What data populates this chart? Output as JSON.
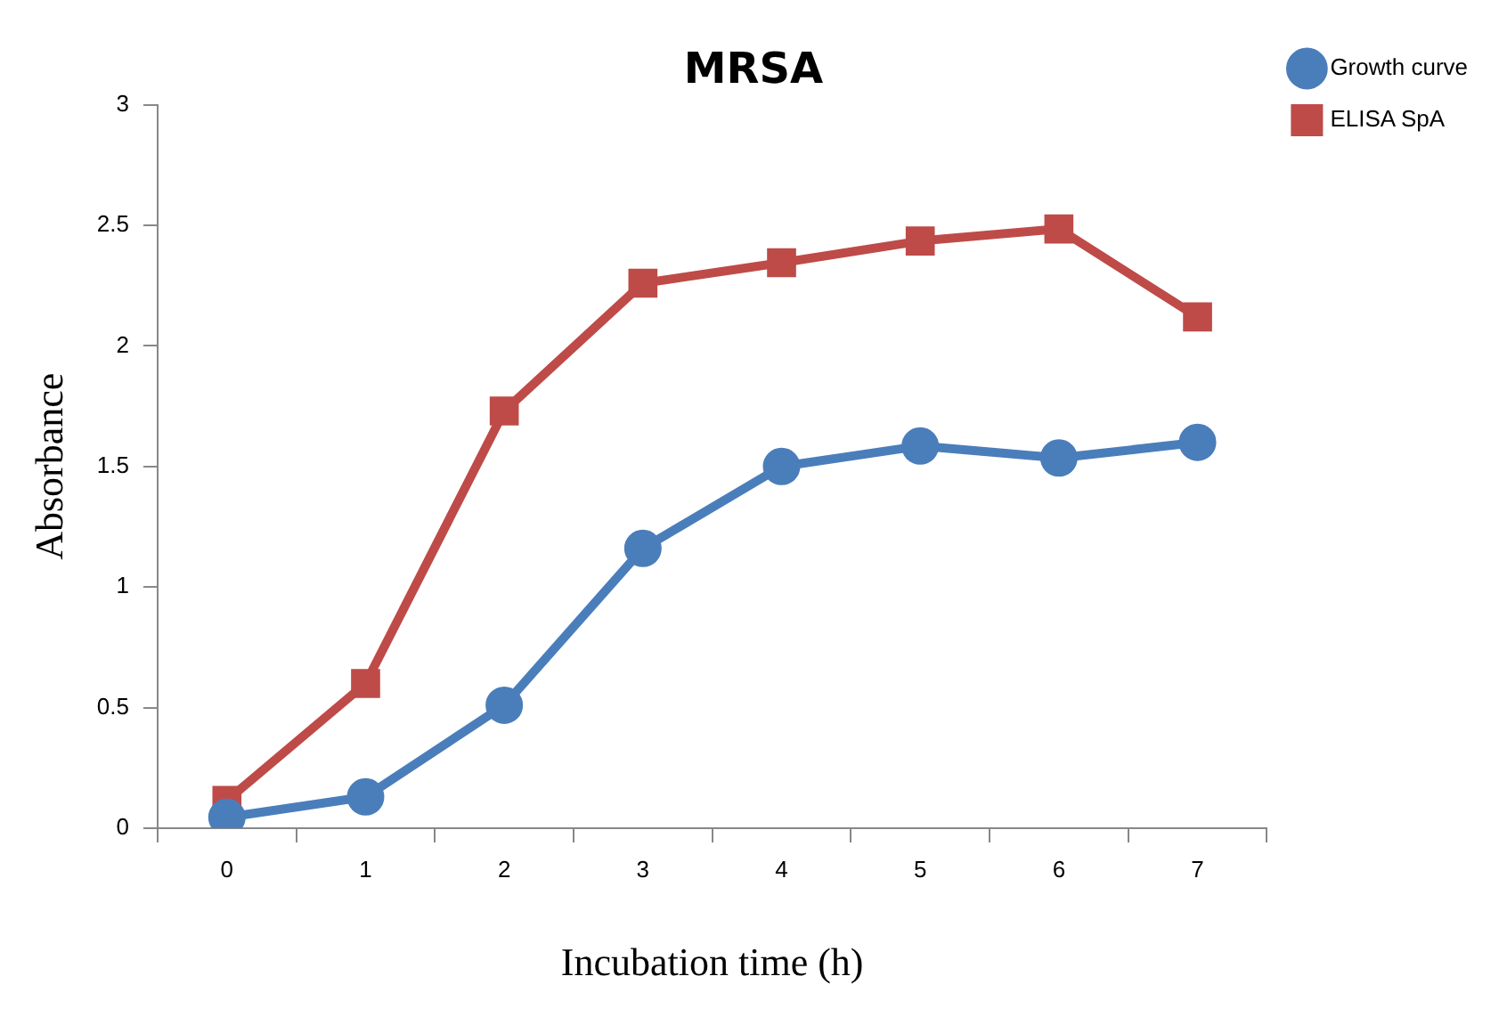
{
  "chart_data": {
    "type": "line",
    "title": "MRSA",
    "xlabel": "Incubation time (h)",
    "ylabel": "Absorbance",
    "categories": [
      "0",
      "1",
      "2",
      "3",
      "4",
      "5",
      "6",
      "7"
    ],
    "series": [
      {
        "name": "Growth curve",
        "color": "#4a7ebb",
        "marker": "circle",
        "values": [
          0.045,
          0.13,
          0.51,
          1.16,
          1.5,
          1.585,
          1.535,
          1.6
        ]
      },
      {
        "name": "ELISA SpA",
        "color": "#be4b48",
        "marker": "square",
        "values": [
          0.115,
          0.6,
          1.73,
          2.26,
          2.345,
          2.435,
          2.485,
          2.12
        ]
      }
    ],
    "ylim": [
      0,
      3
    ],
    "yticks": [
      0,
      0.5,
      1,
      1.5,
      2,
      2.5,
      3
    ],
    "grid": false,
    "legend": "top right"
  }
}
